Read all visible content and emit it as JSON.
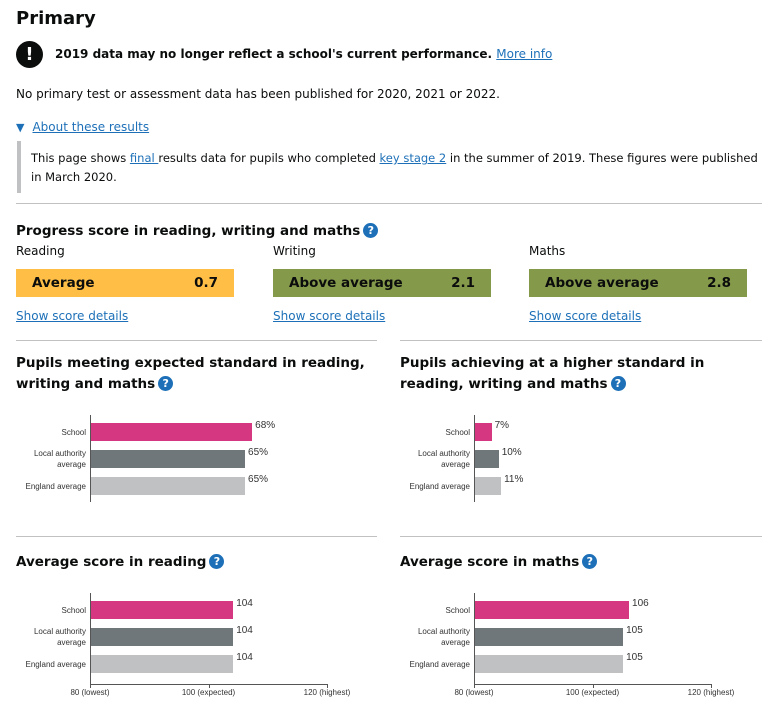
{
  "title": "Primary",
  "warning": {
    "text": "2019 data may no longer reflect a school's current performance.",
    "link": "More info"
  },
  "no_data_text": "No primary test or assessment data has been published for 2020, 2021 or 2022.",
  "details": {
    "summary": "About these results",
    "text_1": "This page shows ",
    "link_1": "final ",
    "text_2": "results data for pupils who completed ",
    "link_2": "key stage 2",
    "text_3": " in the summer of 2019. These figures were published in March 2020."
  },
  "progress": {
    "heading": "Progress score in reading, writing and maths",
    "help": "?",
    "link": "Show score details",
    "subjects": [
      {
        "name": "Reading",
        "band": "Average",
        "score": "0.7",
        "color": "#ffbf47"
      },
      {
        "name": "Writing",
        "band": "Above average",
        "score": "2.1",
        "color": "#85994b"
      },
      {
        "name": "Maths",
        "band": "Above average",
        "score": "2.8",
        "color": "#85994b"
      }
    ]
  },
  "colors": {
    "school": "#d53880",
    "la": "#6f777b",
    "england": "#bfc1c3"
  },
  "chart_data": [
    {
      "type": "bar",
      "title": "Pupils meeting expected standard in reading, writing and maths",
      "categories": [
        "School",
        "Local authority average",
        "England average"
      ],
      "values": [
        68,
        65,
        65
      ],
      "value_labels": [
        "68%",
        "65%",
        "65%"
      ],
      "xlim": [
        0,
        100
      ]
    },
    {
      "type": "bar",
      "title": "Pupils achieving at a higher standard in reading, writing and maths",
      "categories": [
        "School",
        "Local authority average",
        "England average"
      ],
      "values": [
        7,
        10,
        11
      ],
      "value_labels": [
        "7%",
        "10%",
        "11%"
      ],
      "xlim": [
        0,
        100
      ]
    },
    {
      "type": "bar",
      "title": "Average score in reading",
      "categories": [
        "School",
        "Local authority average",
        "England average"
      ],
      "values": [
        104,
        104,
        104
      ],
      "value_labels": [
        "104",
        "104",
        "104"
      ],
      "xlim": [
        80,
        120
      ],
      "ticks": [
        "80 (lowest)",
        "100 (expected)",
        "120 (highest)"
      ]
    },
    {
      "type": "bar",
      "title": "Average score in maths",
      "categories": [
        "School",
        "Local authority average",
        "England average"
      ],
      "values": [
        106,
        105,
        105
      ],
      "value_labels": [
        "106",
        "105",
        "105"
      ],
      "xlim": [
        80,
        120
      ],
      "ticks": [
        "80 (lowest)",
        "100 (expected)",
        "120 (highest)"
      ]
    }
  ]
}
